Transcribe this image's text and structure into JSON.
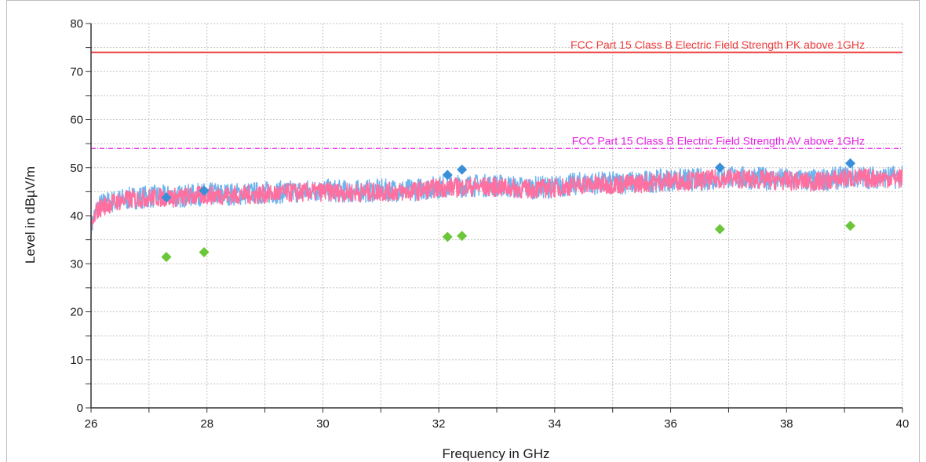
{
  "chart_data": {
    "type": "line",
    "title": "",
    "xlabel": "Frequency in GHz",
    "ylabel": "Level in dBµV/m",
    "xlim": [
      26,
      40
    ],
    "ylim": [
      0,
      80
    ],
    "x_ticks": [
      26,
      28,
      30,
      32,
      34,
      36,
      38,
      40
    ],
    "y_ticks": [
      0,
      10,
      20,
      30,
      40,
      50,
      60,
      70,
      80
    ],
    "grid": true,
    "limit_lines": [
      {
        "name": "FCC Part 15 Class B Electric Field Strength PK above 1GHz",
        "value": 74,
        "color": "#ee3b3b",
        "style": "solid"
      },
      {
        "name": "FCC Part 15 Class B Electric Field Strength AV above 1GHz",
        "value": 54,
        "color": "#e61ee6",
        "style": "dash-dot"
      }
    ],
    "series": [
      {
        "color": "#6cb4ee",
        "x": [
          26.0,
          26.1,
          26.2,
          26.4,
          26.6,
          26.8,
          27.0,
          27.5,
          28.0,
          28.5,
          29.0,
          29.5,
          30.0,
          30.5,
          31.0,
          31.5,
          32.0,
          32.5,
          33.0,
          33.5,
          34.0,
          34.5,
          35.0,
          35.5,
          36.0,
          36.5,
          37.0,
          37.5,
          38.0,
          38.5,
          39.0,
          39.5,
          40.0
        ],
        "values": [
          37.5,
          41.5,
          42.5,
          43.0,
          43.5,
          43.8,
          44.0,
          44.0,
          44.5,
          44.5,
          44.8,
          45.0,
          45.3,
          45.0,
          45.3,
          45.3,
          46.0,
          46.3,
          46.3,
          45.8,
          46.0,
          46.8,
          46.8,
          47.0,
          47.5,
          47.5,
          48.0,
          47.8,
          47.5,
          47.3,
          48.0,
          48.0,
          48.0
        ]
      },
      {
        "color": "#ff6f9f",
        "x": [
          26.0,
          26.1,
          26.2,
          26.4,
          26.6,
          26.8,
          27.0,
          27.5,
          28.0,
          28.5,
          29.0,
          29.5,
          30.0,
          30.5,
          31.0,
          31.5,
          32.0,
          32.5,
          33.0,
          33.5,
          34.0,
          34.5,
          35.0,
          35.5,
          36.0,
          36.5,
          37.0,
          37.5,
          38.0,
          38.5,
          39.0,
          39.5,
          40.0
        ],
        "values": [
          37.0,
          41.0,
          42.0,
          42.8,
          43.3,
          43.5,
          43.8,
          43.8,
          44.3,
          44.3,
          44.5,
          44.8,
          45.0,
          44.8,
          45.0,
          45.0,
          45.8,
          46.0,
          46.0,
          45.5,
          45.8,
          46.5,
          46.5,
          46.8,
          47.3,
          47.3,
          47.8,
          47.5,
          47.3,
          47.0,
          47.8,
          47.8,
          47.8
        ]
      },
      {
        "type": "scatter",
        "marker": "diamond",
        "color": "#3a8fd9",
        "x": [
          27.3,
          27.95,
          32.15,
          32.4,
          36.85,
          39.1
        ],
        "values": [
          43.8,
          45.2,
          48.5,
          49.6,
          50.0,
          50.9
        ]
      },
      {
        "type": "scatter",
        "marker": "diamond",
        "color": "#6cc63a",
        "x": [
          27.3,
          27.95,
          32.15,
          32.4,
          36.85,
          39.1
        ],
        "values": [
          31.4,
          32.4,
          35.6,
          35.8,
          37.2,
          37.9
        ]
      }
    ]
  }
}
